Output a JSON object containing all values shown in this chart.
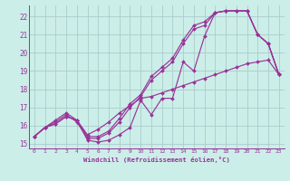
{
  "bg_color": "#cceee8",
  "grid_color": "#aacccc",
  "line_color": "#993399",
  "xlabel": "Windchill (Refroidissement éolien,°C)",
  "ylabel_ticks": [
    15,
    16,
    17,
    18,
    19,
    20,
    21,
    22
  ],
  "xtick_labels": [
    "0",
    "1",
    "2",
    "3",
    "4",
    "5",
    "6",
    "7",
    "8",
    "9",
    "10",
    "11",
    "12",
    "13",
    "14",
    "15",
    "16",
    "17",
    "18",
    "19",
    "20",
    "21",
    "22",
    "23"
  ],
  "xlim": [
    -0.5,
    23.5
  ],
  "ylim": [
    14.75,
    22.6
  ],
  "series1": [
    [
      0,
      15.4
    ],
    [
      1,
      15.9
    ],
    [
      2,
      16.1
    ],
    [
      3,
      16.5
    ],
    [
      4,
      16.3
    ],
    [
      5,
      15.2
    ],
    [
      6,
      15.1
    ],
    [
      7,
      15.2
    ],
    [
      8,
      15.5
    ],
    [
      9,
      15.9
    ],
    [
      10,
      17.4
    ],
    [
      11,
      16.6
    ],
    [
      12,
      17.5
    ],
    [
      13,
      17.5
    ],
    [
      14,
      19.5
    ],
    [
      15,
      19.0
    ],
    [
      16,
      20.9
    ],
    [
      17,
      22.2
    ],
    [
      18,
      22.3
    ],
    [
      19,
      22.3
    ],
    [
      20,
      22.3
    ],
    [
      21,
      21.0
    ],
    [
      22,
      20.5
    ],
    [
      23,
      18.8
    ]
  ],
  "series2": [
    [
      0,
      15.4
    ],
    [
      1,
      15.9
    ],
    [
      2,
      16.2
    ],
    [
      3,
      16.6
    ],
    [
      4,
      16.2
    ],
    [
      5,
      15.3
    ],
    [
      6,
      15.3
    ],
    [
      7,
      15.6
    ],
    [
      8,
      16.2
    ],
    [
      9,
      17.0
    ],
    [
      10,
      17.6
    ],
    [
      11,
      18.5
    ],
    [
      12,
      19.0
    ],
    [
      13,
      19.5
    ],
    [
      14,
      20.5
    ],
    [
      15,
      21.3
    ],
    [
      16,
      21.5
    ],
    [
      17,
      22.2
    ],
    [
      18,
      22.3
    ],
    [
      19,
      22.3
    ],
    [
      20,
      22.3
    ],
    [
      21,
      21.0
    ],
    [
      22,
      20.5
    ],
    [
      23,
      18.8
    ]
  ],
  "series3": [
    [
      0,
      15.4
    ],
    [
      1,
      15.9
    ],
    [
      2,
      16.3
    ],
    [
      3,
      16.7
    ],
    [
      4,
      16.3
    ],
    [
      5,
      15.4
    ],
    [
      6,
      15.4
    ],
    [
      7,
      15.7
    ],
    [
      8,
      16.4
    ],
    [
      9,
      17.2
    ],
    [
      10,
      17.7
    ],
    [
      11,
      18.7
    ],
    [
      12,
      19.2
    ],
    [
      13,
      19.7
    ],
    [
      14,
      20.7
    ],
    [
      15,
      21.5
    ],
    [
      16,
      21.7
    ],
    [
      17,
      22.2
    ],
    [
      18,
      22.3
    ],
    [
      19,
      22.3
    ],
    [
      20,
      22.3
    ],
    [
      21,
      21.0
    ],
    [
      22,
      20.5
    ],
    [
      23,
      18.8
    ]
  ],
  "flat_series": [
    [
      0,
      15.4
    ],
    [
      1,
      15.9
    ],
    [
      2,
      16.1
    ],
    [
      3,
      16.5
    ],
    [
      4,
      16.3
    ],
    [
      5,
      15.5
    ],
    [
      6,
      15.8
    ],
    [
      7,
      16.2
    ],
    [
      8,
      16.7
    ],
    [
      9,
      17.1
    ],
    [
      10,
      17.5
    ],
    [
      11,
      17.6
    ],
    [
      12,
      17.8
    ],
    [
      13,
      18.0
    ],
    [
      14,
      18.2
    ],
    [
      15,
      18.4
    ],
    [
      16,
      18.6
    ],
    [
      17,
      18.8
    ],
    [
      18,
      19.0
    ],
    [
      19,
      19.2
    ],
    [
      20,
      19.4
    ],
    [
      21,
      19.5
    ],
    [
      22,
      19.6
    ],
    [
      23,
      18.8
    ]
  ]
}
